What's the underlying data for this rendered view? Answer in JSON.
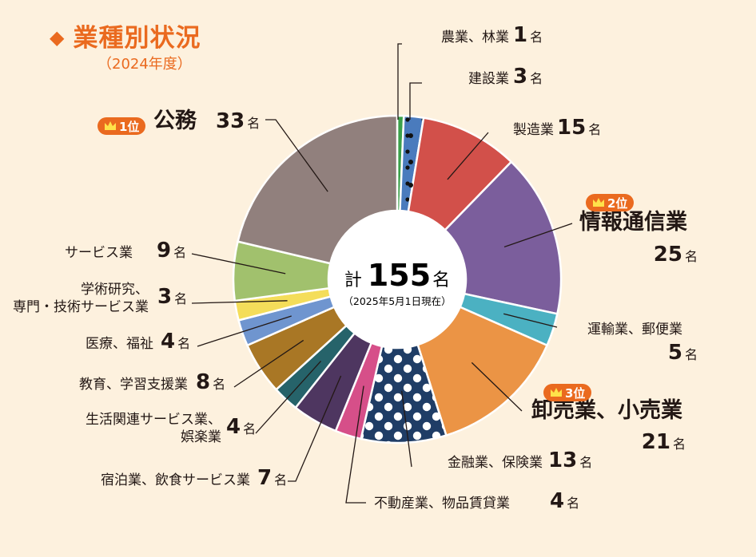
{
  "title": "業種別状況",
  "title_marker": "◆",
  "subtitle": "（2024年度）",
  "center": {
    "prefix": "計",
    "total": "155",
    "unit": "名",
    "note": "（2025年5月1日現在）"
  },
  "colors": {
    "accent": "#ea6a1f",
    "background": "#fdf1de",
    "leader": "#231815"
  },
  "chart_data": {
    "type": "pie",
    "variant": "donut",
    "title": "業種別状況",
    "subtitle": "（2024年度）",
    "total": 155,
    "unit": "名",
    "start_angle_deg": 0,
    "direction": "clockwise",
    "slices": [
      {
        "label": "農業、林業",
        "value": 1,
        "color": "#3aa04a",
        "pattern": ""
      },
      {
        "label": "建設業",
        "value": 3,
        "color": "#4a7bbd",
        "pattern": "dots-small"
      },
      {
        "label": "製造業",
        "value": 15,
        "color": "#d2504a",
        "pattern": ""
      },
      {
        "label": "情報通信業",
        "value": 25,
        "color": "#7b5e9c",
        "pattern": "",
        "rank": "2位"
      },
      {
        "label": "運輸業、郵便業",
        "value": 5,
        "color": "#4bb1c2",
        "pattern": ""
      },
      {
        "label": "卸売業、小売業",
        "value": 21,
        "color": "#eb9445",
        "pattern": "",
        "rank": "3位"
      },
      {
        "label": "金融業、保険業",
        "value": 13,
        "color": "#1f3d66",
        "pattern": "polka-dots"
      },
      {
        "label": "不動産業、物品賃貸業",
        "value": 4,
        "color": "#d64f89",
        "pattern": ""
      },
      {
        "label": "宿泊業、飲食サービス業",
        "value": 7,
        "color": "#4e3660",
        "pattern": ""
      },
      {
        "label": "生活関連サービス業、娯楽業",
        "value": 4,
        "color": "#26636a",
        "pattern": ""
      },
      {
        "label": "教育、学習支援業",
        "value": 8,
        "color": "#a97725",
        "pattern": ""
      },
      {
        "label": "医療、福祉",
        "value": 4,
        "color": "#6f95cf",
        "pattern": ""
      },
      {
        "label": "学術研究、専門・技術サービス業",
        "value": 3,
        "color": "#f4dd5a",
        "pattern": ""
      },
      {
        "label": "サービス業",
        "value": 9,
        "color": "#a1c16d",
        "pattern": ""
      },
      {
        "label": "公務",
        "value": 33,
        "color": "#91807d",
        "pattern": "",
        "rank": "1位"
      }
    ]
  }
}
